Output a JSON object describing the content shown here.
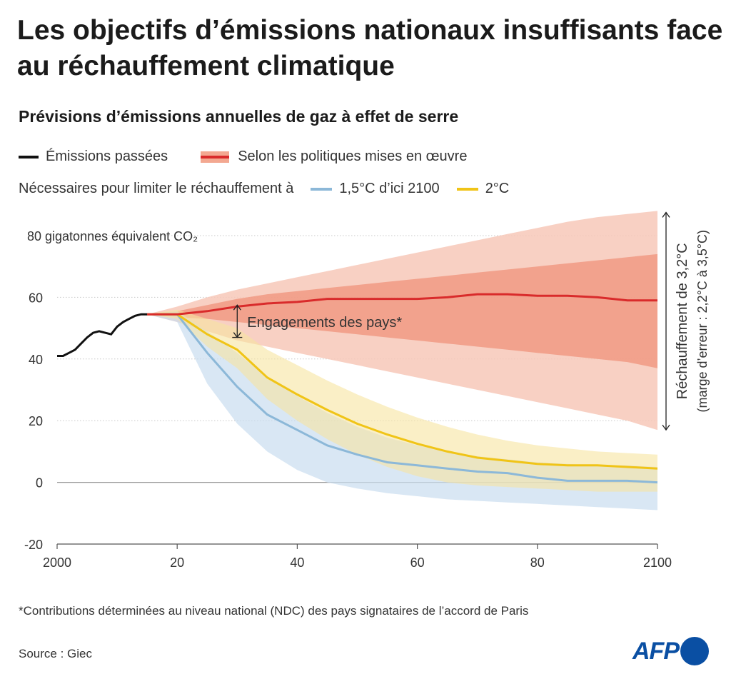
{
  "title": "Les objectifs d’émissions nationaux insuffisants face au réchauffement climatique",
  "subtitle": "Prévisions d’émissions annuelles de gaz à effet de serre",
  "legend": {
    "past": "Émissions passées",
    "policies": "Selon les politiques mises en œuvre",
    "needed_prefix": "Nécessaires pour limiter le réchauffement à",
    "c15": "1,5°C d’ici 2100",
    "c2": "2°C"
  },
  "annotations": {
    "pledges": "Engagements des pays*",
    "warming_line1": "Réchauffement de 3,2°C",
    "warming_line2": "(marge d’erreur : 2,2°C à 3,5°C)"
  },
  "footnote": "*Contributions déterminées au niveau national (NDC) des pays signataires de l’accord de Paris",
  "source": "Source : Giec",
  "brand": "AFP",
  "colors": {
    "past": "#111111",
    "policies": "#d92b2b",
    "policies_band_inner": "#ef8f76",
    "policies_band_outer": "#f7c8b8",
    "c15": "#8cb8d8",
    "c15_band": "#c9ddef",
    "c2": "#f0c417",
    "c2_band": "#f7e4a0",
    "brand": "#0a4fa3"
  },
  "chart_data": {
    "type": "line",
    "xlim": [
      2000,
      2100
    ],
    "ylim": [
      -20,
      80
    ],
    "x_tick_labels": [
      "2000",
      "20",
      "40",
      "60",
      "80",
      "2100"
    ],
    "x_ticks": [
      2000,
      2020,
      2040,
      2060,
      2080,
      2100
    ],
    "y_ticks": [
      -20,
      0,
      20,
      40,
      60,
      80
    ],
    "y_tick_labels": [
      "-20",
      "0",
      "20",
      "40",
      "60",
      ""
    ],
    "y_unit_label": "80 gigatonnes équivalent CO₂",
    "series": [
      {
        "name": "Émissions passées",
        "x": [
          2000,
          2001,
          2002,
          2003,
          2004,
          2005,
          2006,
          2007,
          2008,
          2009,
          2010,
          2011,
          2012,
          2013,
          2014,
          2015
        ],
        "y": [
          41,
          41,
          42,
          43,
          45,
          47,
          48.5,
          49,
          48.5,
          48,
          50.5,
          52,
          53,
          54,
          54.5,
          54.5
        ]
      },
      {
        "name": "Selon les politiques mises en œuvre",
        "x": [
          2015,
          2020,
          2025,
          2030,
          2035,
          2040,
          2045,
          2050,
          2055,
          2060,
          2065,
          2070,
          2075,
          2080,
          2085,
          2090,
          2095,
          2100
        ],
        "y": [
          54.5,
          54.5,
          55.5,
          57,
          58,
          58.5,
          59.5,
          59.5,
          59.5,
          59.5,
          60,
          61,
          61,
          60.5,
          60.5,
          60,
          59,
          59
        ],
        "band_inner_low": [
          54.5,
          53.5,
          53,
          52,
          51,
          50,
          49,
          48,
          47,
          46,
          45,
          44,
          43,
          42,
          41,
          40,
          39,
          37
        ],
        "band_inner_high": [
          54.5,
          55.5,
          57.5,
          59.5,
          61,
          62,
          63,
          64,
          65,
          66,
          67,
          68,
          69,
          70,
          71,
          72,
          73,
          74
        ],
        "band_outer_low": [
          54.5,
          52,
          49,
          46,
          44,
          42,
          40,
          38,
          36,
          34,
          32,
          30,
          28,
          26,
          24,
          22,
          20,
          17
        ],
        "band_outer_high": [
          54.5,
          57,
          60,
          62.5,
          64.5,
          66.5,
          68.5,
          70.5,
          72.5,
          74.5,
          76.5,
          78.5,
          80.5,
          82.5,
          84.5,
          86,
          87,
          88
        ]
      },
      {
        "name": "2°C",
        "x": [
          2015,
          2020,
          2025,
          2030,
          2035,
          2040,
          2045,
          2050,
          2055,
          2060,
          2065,
          2070,
          2075,
          2080,
          2085,
          2090,
          2095,
          2100
        ],
        "y": [
          54.5,
          54.5,
          48,
          43,
          34,
          28.5,
          23.5,
          19,
          15.5,
          12.5,
          10,
          8,
          7,
          6,
          5.5,
          5.5,
          5,
          4.5
        ],
        "band_low": [
          54.5,
          53,
          44,
          37,
          27,
          20,
          14,
          9,
          5,
          2,
          0,
          -1,
          -1.5,
          -2,
          -2.5,
          -3,
          -3,
          -3
        ],
        "band_high": [
          54.5,
          56,
          53,
          50,
          43,
          38,
          33,
          28.5,
          24.5,
          21,
          18,
          15.5,
          13.5,
          12,
          11,
          10,
          9.5,
          9
        ]
      },
      {
        "name": "1,5°C d’ici 2100",
        "x": [
          2015,
          2020,
          2025,
          2030,
          2035,
          2040,
          2045,
          2050,
          2055,
          2060,
          2065,
          2070,
          2075,
          2080,
          2085,
          2090,
          2095,
          2100
        ],
        "y": [
          54.5,
          54.5,
          42,
          31,
          22,
          17,
          12,
          9,
          6.5,
          5.5,
          4.5,
          3.5,
          3,
          1.5,
          0.5,
          0.5,
          0.5,
          0
        ],
        "band_low": [
          54.5,
          52,
          32,
          19,
          10,
          4,
          0,
          -2,
          -3.5,
          -4.5,
          -5.5,
          -6,
          -6.5,
          -7,
          -7.5,
          -8,
          -8.5,
          -9
        ],
        "band_high": [
          54.5,
          55.5,
          49,
          42,
          34,
          28,
          22.5,
          18,
          14.5,
          12,
          10,
          8.5,
          7.5,
          6.5,
          6,
          5.5,
          5.5,
          5
        ]
      }
    ]
  }
}
